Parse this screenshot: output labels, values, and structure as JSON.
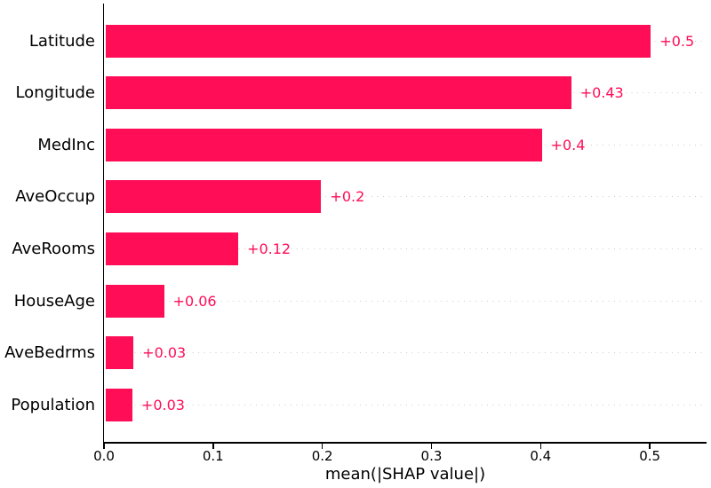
{
  "chart_data": {
    "type": "bar",
    "orientation": "horizontal",
    "title": "",
    "xlabel": "mean(|SHAP value|)",
    "ylabel": "",
    "categories": [
      "Latitude",
      "Longitude",
      "MedInc",
      "AveOccup",
      "AveRooms",
      "HouseAge",
      "AveBedrms",
      "Population"
    ],
    "values": [
      0.5,
      0.43,
      0.4,
      0.2,
      0.12,
      0.06,
      0.03,
      0.03
    ],
    "bar_lengths": [
      0.501,
      0.428,
      0.401,
      0.199,
      0.123,
      0.055,
      0.027,
      0.026
    ],
    "value_labels": [
      "+0.5",
      "+0.43",
      "+0.4",
      "+0.2",
      "+0.12",
      "+0.06",
      "+0.03",
      "+0.03"
    ],
    "x_ticks": [
      0.0,
      0.1,
      0.2,
      0.3,
      0.4,
      0.5
    ],
    "x_tick_labels": [
      "0.0",
      "0.1",
      "0.2",
      "0.3",
      "0.4",
      "0.5"
    ],
    "xlim": [
      0,
      0.552
    ],
    "grid": "horizontal-dotted",
    "legend_position": "none",
    "colors": {
      "bar": "#ff0d57",
      "value_label": "#ff0d57",
      "gridline": "#cccccc",
      "axis": "#000000",
      "text": "#000000",
      "background": "#ffffff"
    }
  }
}
